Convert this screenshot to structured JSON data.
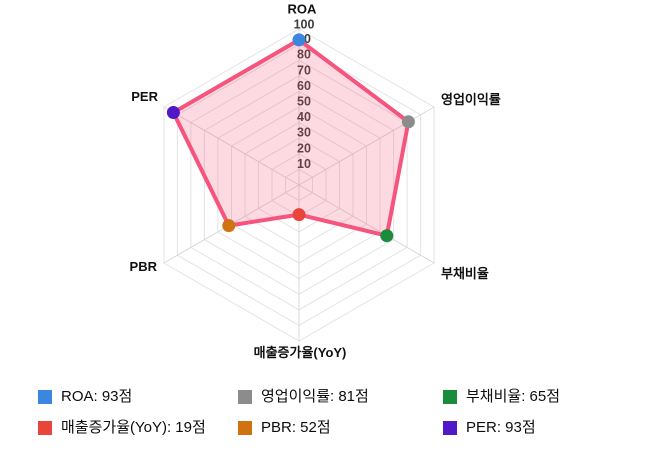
{
  "chart_data": {
    "type": "radar",
    "grid_shape": "polygon",
    "grid_levels": 10,
    "axes": [
      "ROA",
      "영업이익률",
      "부채비율",
      "매출증가율(YoY)",
      "PBR",
      "PER"
    ],
    "values": [
      93,
      81,
      65,
      19,
      52,
      93
    ],
    "point_colors": [
      "#3d86e0",
      "#8c8c8c",
      "#1a8c3c",
      "#e8463a",
      "#cf720f",
      "#5018c8"
    ],
    "scale_min": 0,
    "scale_max": 100,
    "tick_labels": [
      "10",
      "20",
      "30",
      "40",
      "50",
      "60",
      "70",
      "80",
      "90",
      "100"
    ],
    "series_stroke": "#f6537d",
    "series_fill": "rgba(246,83,125,0.22)",
    "ring_color": "#e3e3e3",
    "spoke_color": "#d8d8d8",
    "tick_color": "#3c3c3c",
    "axis_label_color": "#111111",
    "legend_position": "bottom"
  },
  "legend": {
    "items": [
      {
        "label": "ROA: 93점",
        "color": "#3d86e0"
      },
      {
        "label": "영업이익률: 81점",
        "color": "#8c8c8c"
      },
      {
        "label": "부채비율: 65점",
        "color": "#1a8c3c"
      },
      {
        "label": "매출증가율(YoY): 19점",
        "color": "#e8463a"
      },
      {
        "label": "PBR: 52점",
        "color": "#cf720f"
      },
      {
        "label": "PER: 93점",
        "color": "#5018c8"
      }
    ]
  }
}
